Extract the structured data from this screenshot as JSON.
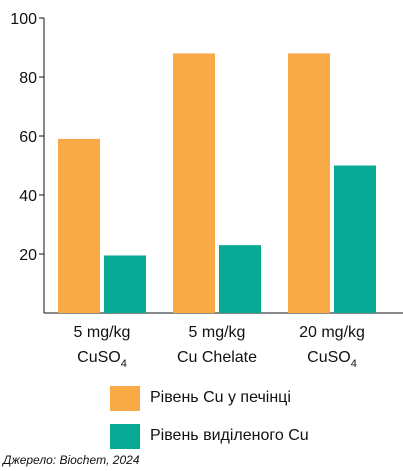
{
  "chart_data": {
    "type": "bar",
    "categories": [
      {
        "line1": "5 mg/kg",
        "line2": "CuSO",
        "line2_sub": "4"
      },
      {
        "line1": "5 mg/kg",
        "line2": "Cu Chelate",
        "line2_sub": ""
      },
      {
        "line1": "20 mg/kg",
        "line2": "CuSO",
        "line2_sub": "4"
      }
    ],
    "series": [
      {
        "name": "Рівень Cu у печінці",
        "color": "#F9A946",
        "values": [
          59,
          88,
          88
        ]
      },
      {
        "name": "Рівень виділеного Cu",
        "color": "#08AA96",
        "values": [
          19.5,
          23,
          50
        ]
      }
    ],
    "yticks": [
      20,
      40,
      60,
      80,
      100
    ],
    "ylim": [
      0,
      100
    ],
    "grid": false,
    "legend_position": "bottom"
  },
  "source": "Джерело: Biochem, 2024"
}
